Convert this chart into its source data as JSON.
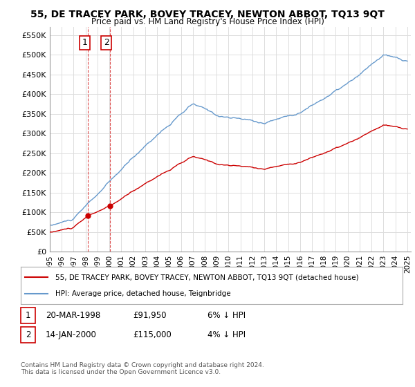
{
  "title": "55, DE TRACEY PARK, BOVEY TRACEY, NEWTON ABBOT, TQ13 9QT",
  "subtitle": "Price paid vs. HM Land Registry's House Price Index (HPI)",
  "ylabel_ticks": [
    "£0",
    "£50K",
    "£100K",
    "£150K",
    "£200K",
    "£250K",
    "£300K",
    "£350K",
    "£400K",
    "£450K",
    "£500K",
    "£550K"
  ],
  "ytick_values": [
    0,
    50000,
    100000,
    150000,
    200000,
    250000,
    300000,
    350000,
    400000,
    450000,
    500000,
    550000
  ],
  "ylim": [
    0,
    570000
  ],
  "xlim_start": 1995.0,
  "xlim_end": 2025.3,
  "hpi_color": "#6699cc",
  "price_color": "#cc0000",
  "purchase1_date": 1998.22,
  "purchase1_price": 91950,
  "purchase1_label": "1",
  "purchase2_date": 2000.04,
  "purchase2_price": 115000,
  "purchase2_label": "2",
  "legend_line1": "55, DE TRACEY PARK, BOVEY TRACEY, NEWTON ABBOT, TQ13 9QT (detached house)",
  "legend_line2": "HPI: Average price, detached house, Teignbridge",
  "table_row1": [
    "1",
    "20-MAR-1998",
    "£91,950",
    "6% ↓ HPI"
  ],
  "table_row2": [
    "2",
    "14-JAN-2000",
    "£115,000",
    "4% ↓ HPI"
  ],
  "footer": "Contains HM Land Registry data © Crown copyright and database right 2024.\nThis data is licensed under the Open Government Licence v3.0.",
  "background_color": "#ffffff",
  "grid_color": "#dddddd"
}
